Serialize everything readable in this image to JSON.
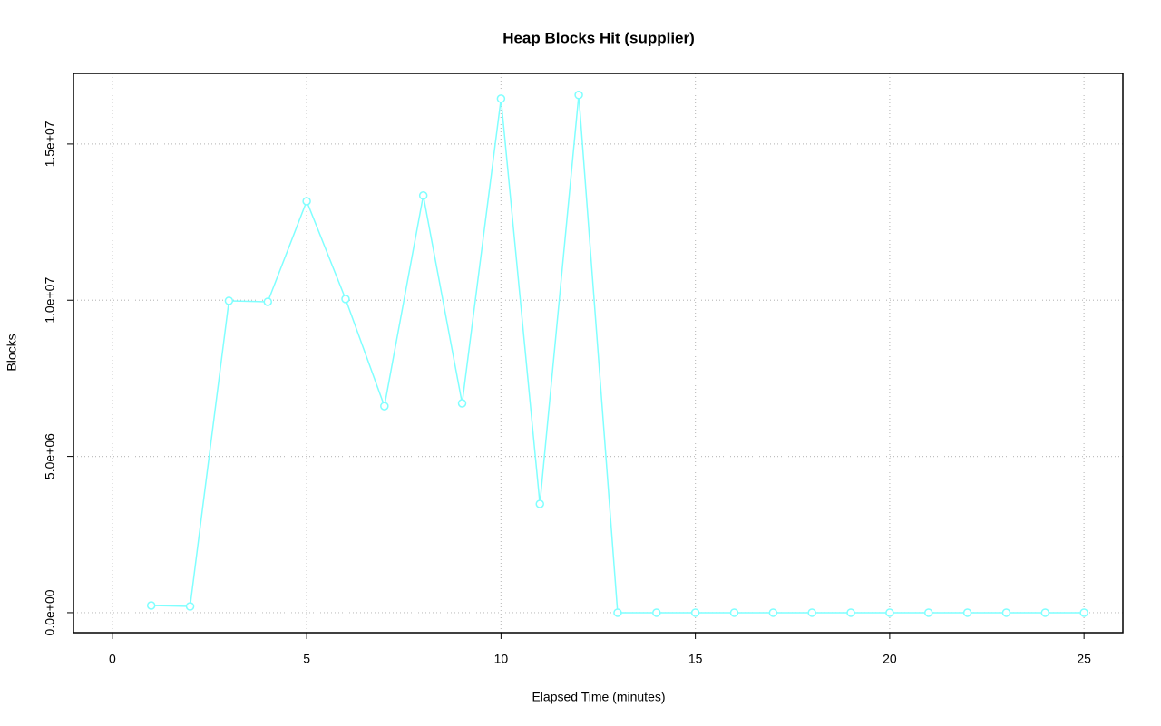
{
  "chart_data": {
    "type": "line",
    "title": "Heap Blocks Hit (supplier)",
    "x_label": "Elapsed Time (minutes)",
    "y_label": "Blocks",
    "x": [
      1,
      2,
      3,
      4,
      5,
      6,
      7,
      8,
      9,
      10,
      11,
      12,
      13,
      14,
      15,
      16,
      17,
      18,
      19,
      20,
      21,
      22,
      23,
      24,
      25
    ],
    "series": [
      {
        "color": "#7fffff",
        "values": [
          230000,
          200000,
          9980000,
          9950000,
          13170000,
          10040000,
          6610000,
          13350000,
          6700000,
          16450000,
          3480000,
          16570000,
          0,
          0,
          0,
          0,
          0,
          0,
          0,
          0,
          0,
          0,
          0,
          0,
          0
        ]
      }
    ],
    "xlim": [
      -1,
      26
    ],
    "ylim": [
      -640000,
      17260000
    ],
    "xticks": [
      0,
      5,
      10,
      15,
      20,
      25
    ],
    "yticks": [
      {
        "value": 0,
        "label": "0.0e+00"
      },
      {
        "value": 5000000,
        "label": "5.0e+06"
      },
      {
        "value": 10000000,
        "label": "1.0e+07"
      },
      {
        "value": 15000000,
        "label": "1.5e+07"
      }
    ],
    "grid": true
  }
}
